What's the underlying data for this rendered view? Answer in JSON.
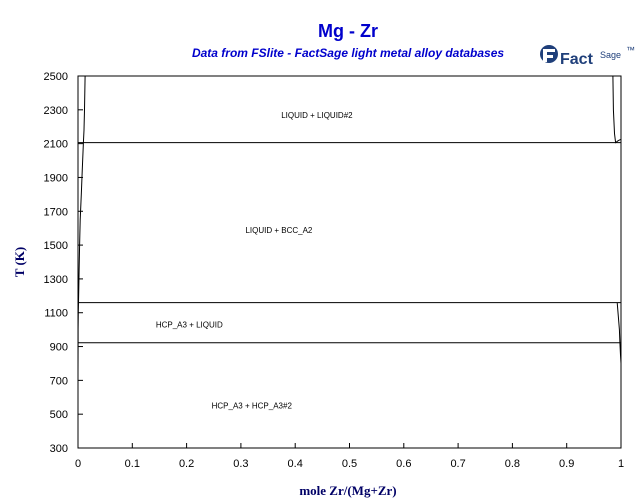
{
  "title": "Mg - Zr",
  "subtitle": "Data from FSlite - FactSage light metal alloy databases",
  "logo": {
    "name": "FactSage",
    "main": "Fact",
    "sup": "Sage",
    "tm": "™"
  },
  "chart_data": {
    "type": "line",
    "xlabel": "mole Zr/(Mg+Zr)",
    "ylabel": "T (K)",
    "xlim": [
      0,
      1
    ],
    "ylim": [
      300,
      2500
    ],
    "xticks": [
      0,
      0.1,
      0.2,
      0.3,
      0.4,
      0.5,
      0.6,
      0.7,
      0.8,
      0.9,
      1
    ],
    "yticks": [
      300,
      500,
      700,
      900,
      1100,
      1300,
      1500,
      1700,
      1900,
      2100,
      2300,
      2500
    ],
    "grid": false,
    "series": [
      {
        "x": [
          0,
          1
        ],
        "y": [
          2106,
          2106
        ]
      },
      {
        "x": [
          0,
          1
        ],
        "y": [
          1160,
          1160
        ]
      },
      {
        "x": [
          0,
          1
        ],
        "y": [
          923,
          923
        ]
      },
      {
        "x": [
          0.013,
          0.012,
          0.011,
          0.01,
          0.008,
          0.006,
          0.004,
          0.003,
          0.002,
          0.0015,
          0.001,
          0.0005,
          0.0002,
          0.0001,
          0
        ],
        "y": [
          2500,
          2300,
          2180,
          2106,
          1950,
          1800,
          1650,
          1500,
          1350,
          1250,
          1160,
          1100,
          1000,
          923,
          750
        ]
      },
      {
        "x": [
          0.985,
          0.986,
          0.988,
          0.99,
          0.995,
          0.999,
          1
        ],
        "y": [
          2500,
          2300,
          2160,
          2106,
          2118,
          2124,
          2125
        ]
      },
      {
        "x": [
          0.993,
          0.995,
          0.997,
          0.998,
          0.999,
          1
        ],
        "y": [
          1160,
          1080,
          1000,
          923,
          850,
          800
        ]
      }
    ],
    "annotations": [
      {
        "text": "LIQUID + LIQUID#2",
        "x": 0.44,
        "y": 2270
      },
      {
        "text": "LIQUID + BCC_A2",
        "x": 0.37,
        "y": 1590
      },
      {
        "text": "HCP_A3 + LIQUID",
        "x": 0.205,
        "y": 1030
      },
      {
        "text": "HCP_A3 + HCP_A3#2",
        "x": 0.32,
        "y": 550
      }
    ]
  }
}
